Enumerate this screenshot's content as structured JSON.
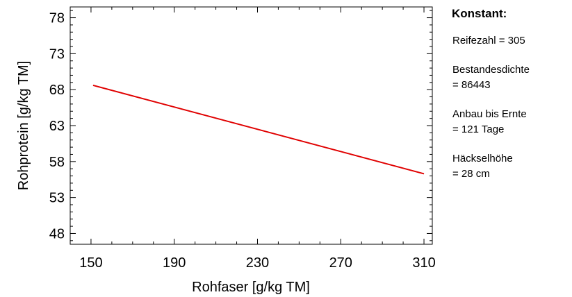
{
  "chart_data": {
    "type": "line",
    "xlabel": "Rohfaser [g/kg TM]",
    "ylabel": "Rohprotein [g/kg TM]",
    "xlim": [
      140,
      314
    ],
    "ylim": [
      46.5,
      79.5
    ],
    "x_ticks": [
      150,
      190,
      230,
      270,
      310
    ],
    "y_ticks": [
      48,
      53,
      58,
      63,
      68,
      73,
      78
    ],
    "grid": false,
    "series": [
      {
        "color": "#e00000",
        "x": [
          151,
          310
        ],
        "y": [
          68.6,
          56.3
        ]
      }
    ]
  },
  "side_panel": {
    "title": "Konstant:",
    "items": [
      {
        "lines": [
          "Reifezahl = 305"
        ]
      },
      {
        "lines": [
          "Bestandesdichte",
          "= 86443"
        ]
      },
      {
        "lines": [
          "Anbau bis Ernte",
          "= 121 Tage"
        ]
      },
      {
        "lines": [
          "Häckselhöhe",
          "= 28 cm"
        ]
      }
    ]
  }
}
